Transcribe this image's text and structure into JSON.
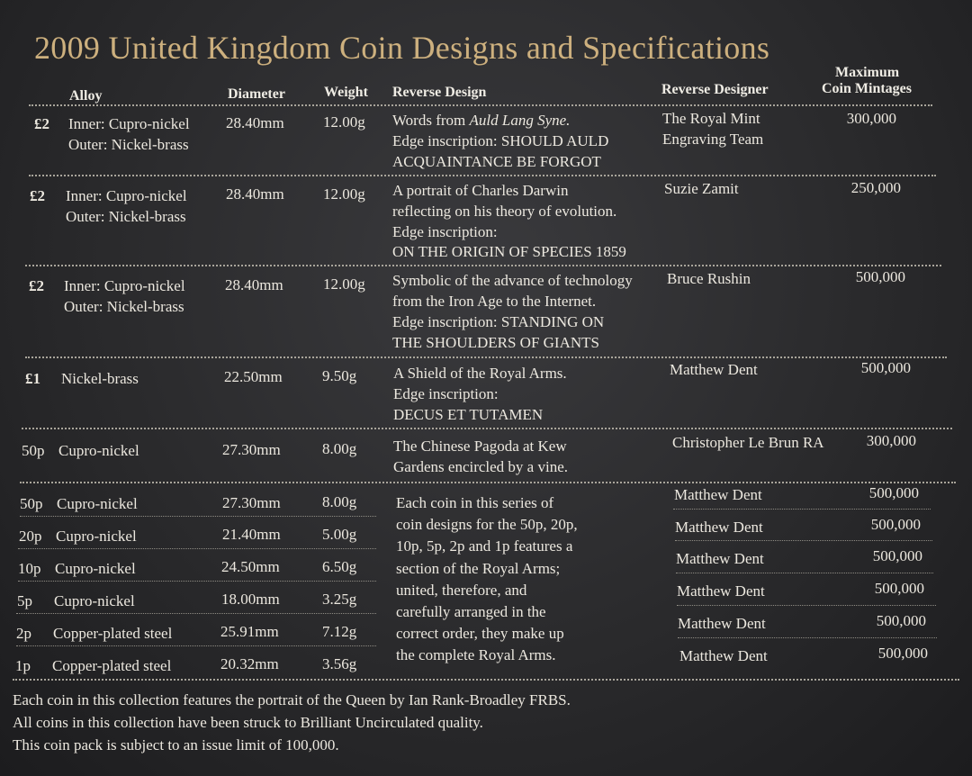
{
  "title": "2009 United Kingdom Coin Designs and Specifications",
  "headers": {
    "alloy": "Alloy",
    "diameter": "Diameter",
    "weight": "Weight",
    "reverse_design": "Reverse Design",
    "reverse_designer": "Reverse Designer",
    "mintage_line1": "Maximum",
    "mintage_line2": "Coin Mintages"
  },
  "rows": [
    {
      "denomination": "£2",
      "alloy": [
        "Inner: Cupro-nickel",
        "Outer: Nickel-brass"
      ],
      "diameter": "28.40mm",
      "weight": "12.00g",
      "design_prefix": "Words from ",
      "design_italic": "Auld Lang Syne.",
      "design": [
        "Edge inscription: SHOULD AULD",
        "ACQUAINTANCE BE FORGOT"
      ],
      "designer": [
        "The Royal Mint",
        "Engraving Team"
      ],
      "mintage": "300,000"
    },
    {
      "denomination": "£2",
      "alloy": [
        "Inner: Cupro-nickel",
        "Outer: Nickel-brass"
      ],
      "diameter": "28.40mm",
      "weight": "12.00g",
      "design": [
        "A portrait of Charles Darwin",
        "reflecting on his theory of evolution.",
        "Edge inscription:",
        "ON THE ORIGIN OF SPECIES 1859"
      ],
      "designer": [
        "Suzie Zamit"
      ],
      "mintage": "250,000"
    },
    {
      "denomination": "£2",
      "alloy": [
        "Inner: Cupro-nickel",
        "Outer: Nickel-brass"
      ],
      "diameter": "28.40mm",
      "weight": "12.00g",
      "design": [
        "Symbolic of the advance of technology",
        "from the Iron Age to the Internet.",
        "Edge inscription: STANDING ON",
        "THE SHOULDERS OF GIANTS"
      ],
      "designer": [
        "Bruce Rushin"
      ],
      "mintage": "500,000"
    },
    {
      "denomination": "£1",
      "alloy": [
        "Nickel-brass"
      ],
      "diameter": "22.50mm",
      "weight": "9.50g",
      "design": [
        "A Shield of the Royal Arms.",
        "Edge inscription:",
        "DECUS ET TUTAMEN"
      ],
      "designer": [
        "Matthew Dent"
      ],
      "mintage": "500,000"
    },
    {
      "denomination": "50p",
      "alloy": [
        "Cupro-nickel"
      ],
      "diameter": "27.30mm",
      "weight": "8.00g",
      "design": [
        "The Chinese Pagoda at Kew",
        "Gardens encircled by a vine."
      ],
      "designer": [
        "Christopher Le Brun RA"
      ],
      "mintage": "300,000"
    }
  ],
  "series_rows": [
    {
      "denomination": "50p",
      "alloy": "Cupro-nickel",
      "diameter": "27.30mm",
      "weight": "8.00g",
      "designer": "Matthew Dent",
      "mintage": "500,000"
    },
    {
      "denomination": "20p",
      "alloy": "Cupro-nickel",
      "diameter": "21.40mm",
      "weight": "5.00g",
      "designer": "Matthew Dent",
      "mintage": "500,000"
    },
    {
      "denomination": "10p",
      "alloy": "Cupro-nickel",
      "diameter": "24.50mm",
      "weight": "6.50g",
      "designer": "Matthew Dent",
      "mintage": "500,000"
    },
    {
      "denomination": "5p",
      "alloy": "Cupro-nickel",
      "diameter": "18.00mm",
      "weight": "3.25g",
      "designer": "Matthew Dent",
      "mintage": "500,000"
    },
    {
      "denomination": "2p",
      "alloy": "Copper-plated steel",
      "diameter": "25.91mm",
      "weight": "7.12g",
      "designer": "Matthew Dent",
      "mintage": "500,000"
    },
    {
      "denomination": "1p",
      "alloy": "Copper-plated steel",
      "diameter": "20.32mm",
      "weight": "3.56g",
      "designer": "Matthew Dent",
      "mintage": "500,000"
    }
  ],
  "series_design": [
    "Each coin in this series of",
    "coin designs for the 50p, 20p,",
    "10p, 5p, 2p and 1p features a",
    "section of the Royal Arms;",
    "united, therefore, and",
    "carefully arranged in the",
    "correct order, they make up",
    "the complete Royal Arms."
  ],
  "footer": [
    "Each coin in this collection features the portrait of the Queen by Ian Rank-Broadley FRBS.",
    "All coins in this collection have been struck to Brilliant Uncirculated quality.",
    "This coin pack is subject to an issue limit of 100,000."
  ]
}
